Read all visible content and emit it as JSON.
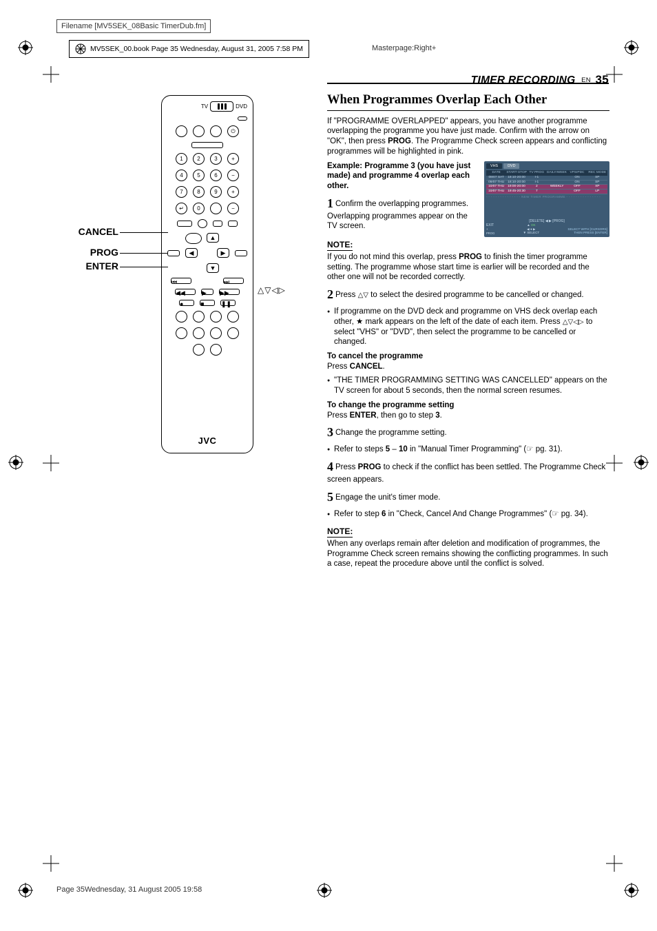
{
  "meta": {
    "filename_label": "Filename [MV5SEK_08Basic TimerDub.fm]",
    "book_stamp": "MV5SEK_00.book  Page 35  Wednesday, August 31, 2005  7:58 PM",
    "masterpage": "Masterpage:Right+",
    "footer_stamp": "Page 35Wednesday, 31 August 2005  19:58"
  },
  "header": {
    "section": "TIMER RECORDING",
    "lang": "EN",
    "page": "35"
  },
  "remote_labels": {
    "cancel": "CANCEL",
    "prog": "PROG",
    "enter": "ENTER",
    "nav_syms": "△▽◁▷",
    "tv": "TV",
    "dvd": "DVD",
    "brand": "JVC"
  },
  "content": {
    "h1": "When Programmes Overlap Each Other",
    "intro_1": "If \"PROGRAMME OVERLAPPED\" appears, you have another programme overlapping the programme you have just made. Confirm with the arrow on \"OK\", then press ",
    "intro_prog": "PROG",
    "intro_2": ". The Programme Check screen appears and conflicting programmes will be highlighted in pink.",
    "example_bold": "Example: Programme 3 (you have just made) and programme 4 overlap each other.",
    "step1": "Confirm the overlapping programmes. Overlapping programmes appear on the TV screen.",
    "note1_a": "If you do not mind this overlap, press ",
    "note1_prog": "PROG",
    "note1_b": " to finish the timer programme setting. The programme whose start time is earlier will be recorded and the other one will not be recorded correctly.",
    "step2_a": "Press ",
    "step2_sym": "△▽",
    "step2_b": " to select the desired programme to be cancelled or changed.",
    "step2_bullet_a": "If programme on the DVD deck and programme on VHS deck overlap each other, ",
    "step2_star": "★",
    "step2_bullet_b": " mark appears on the left of the date of each item. Press ",
    "step2_bullet_sym": "△▽◁▷",
    "step2_bullet_c": " to select \"VHS\" or \"DVD\", then select the programme to be cancelled or changed.",
    "cancel_head": "To cancel the programme",
    "cancel_press_a": "Press ",
    "cancel_press_b": "CANCEL",
    "cancel_press_c": ".",
    "cancel_bullet": "\"THE TIMER PROGRAMMING SETTING WAS CANCELLED\" appears on the TV screen for about 5 seconds, then the normal screen resumes.",
    "change_head": "To change the programme setting",
    "change_press_a": "Press ",
    "change_press_b": "ENTER",
    "change_press_c": ", then go to step ",
    "change_press_d": "3",
    "change_press_e": ".",
    "step3": "Change the programme setting.",
    "step3_bullet_a": "Refer to steps ",
    "step3_bullet_b": "5",
    "step3_bullet_c": " – ",
    "step3_bullet_d": "10",
    "step3_bullet_e": " in \"Manual Timer Programming\" (☞ pg. 31).",
    "step4_a": "Press ",
    "step4_prog": "PROG",
    "step4_b": " to check if the conflict has been settled. The Programme Check screen appears.",
    "step5": "Engage the unit's timer mode.",
    "step5_bullet_a": "Refer to step ",
    "step5_bullet_b": "6",
    "step5_bullet_c": " in \"Check, Cancel And Change Programmes\" (☞ pg. 34).",
    "note2": "When any overlaps remain after deletion and modification of programmes, the Programme Check screen remains showing the conflicting programmes. In such a case, repeat the procedure above until the conflict is solved.",
    "note_label": "NOTE:"
  },
  "tv": {
    "tab_vhs": "VHS",
    "tab_dvd": "DVD",
    "cols": [
      "DATE",
      "START-STOP",
      "TV PROG",
      "DAILY/WEEKLY",
      "VPS/PDC",
      "REC MODE"
    ],
    "rows": [
      [
        "08/07 SAT",
        "18:10-20:00",
        "I-1",
        "",
        "ON",
        "SP"
      ],
      [
        "09/07 THU",
        "18:10-20:00",
        "I-1",
        "",
        "ON",
        "SP"
      ],
      [
        "10/07 THU",
        "19:00-20:00",
        "2",
        "WEEKLY",
        "OFF",
        "XP"
      ],
      [
        "10/07 THU",
        "19:45-20:30",
        "7",
        "",
        "OFF",
        "LP"
      ]
    ],
    "new_prog": "- - - - - - - - - - - - - - - NEW TIMER PROGRAMME - - - - - - - - - - - - - - -",
    "delete_prog": "[DELETE] ◀ ▶ [PROG]",
    "exit": "EXIT",
    "prog": "PROG",
    "ok": "OK",
    "select": "SELECT",
    "guide1": "SELECT WITH [CURSORS]",
    "guide2": "THEN PRESS [ENTER]"
  }
}
